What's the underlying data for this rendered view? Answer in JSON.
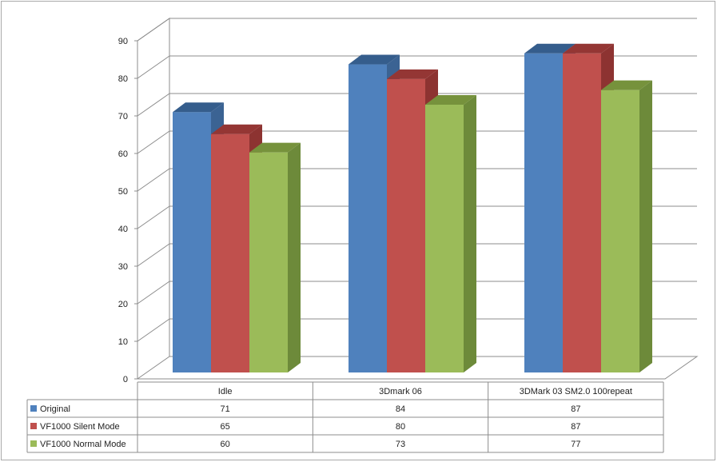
{
  "chart_data": {
    "type": "bar",
    "categories": [
      "Idle",
      "3Dmark 06",
      "3DMark 03 SM2.0 100repeat"
    ],
    "series": [
      {
        "name": "Original",
        "values": [
          71,
          84,
          87
        ],
        "color": "#4f81bd",
        "side": "#3b6393",
        "top": "#355d8c"
      },
      {
        "name": "VF1000 Silent Mode",
        "values": [
          65,
          80,
          87
        ],
        "color": "#c0504d",
        "side": "#8d3331",
        "top": "#943634"
      },
      {
        "name": "VF1000 Normal Mode",
        "values": [
          60,
          73,
          77
        ],
        "color": "#9bbb59",
        "side": "#6d8a3a",
        "top": "#76923c"
      }
    ],
    "y_ticks": [
      "0",
      "10",
      "20",
      "30",
      "40",
      "50",
      "60",
      "70",
      "80",
      "90"
    ],
    "ylim": [
      0,
      90
    ],
    "grid": true,
    "legend": "data-table",
    "grid_color": "#8c8c8c",
    "wall_color": "#ffffff"
  }
}
